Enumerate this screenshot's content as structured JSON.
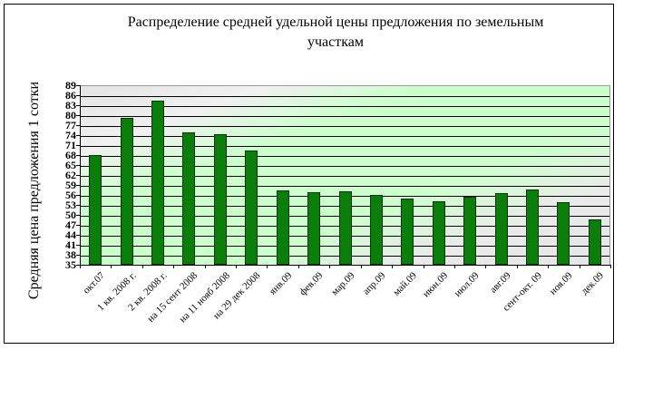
{
  "chart_data": {
    "type": "bar",
    "title": "Распределение средней удельной цены предложения по земельным участкам",
    "title_lines": [
      "Распределение средней удельной цены предложения по земельным",
      "участкам"
    ],
    "xlabel": "",
    "ylabel": "Средняя цена предложения 1 сотки",
    "ylim": [
      35,
      89
    ],
    "yticks": [
      35,
      38,
      41,
      44,
      47,
      50,
      53,
      56,
      59,
      62,
      65,
      68,
      71,
      74,
      77,
      80,
      83,
      86,
      89
    ],
    "grid": true,
    "legend": null,
    "categories": [
      "окт.07",
      "1 кв. 2008 г.",
      "2 кв. 2008 г.",
      "на 15 сент 2008",
      "на 11 нояб 2008",
      "на 29 дек 2008",
      "янв.09",
      "фев.09",
      "мар.09",
      "апр.09",
      "май.09",
      "июн.09",
      "июл.09",
      "авг.09",
      "сент-окт. 09",
      "ноя.09",
      "дек.09"
    ],
    "values": [
      68.0,
      79.2,
      84.4,
      74.8,
      74.2,
      69.5,
      57.3,
      56.8,
      57.0,
      56.0,
      55.0,
      54.2,
      55.4,
      56.5,
      57.6,
      53.8,
      48.6
    ],
    "colors": {
      "bar": "#0b7d0b",
      "bar_border": "#063806",
      "plot_bg_green": "#ccffcc",
      "plot_bg_gray": "#e6e6e6"
    }
  }
}
